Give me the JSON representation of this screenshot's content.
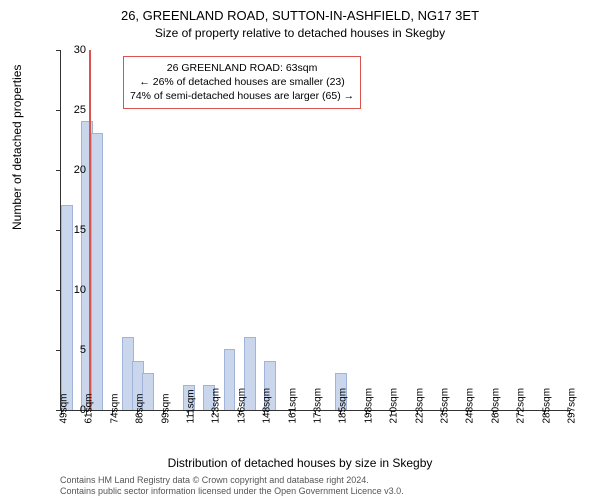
{
  "chart": {
    "type": "histogram",
    "title": "26, GREENLAND ROAD, SUTTON-IN-ASHFIELD, NG17 3ET",
    "subtitle": "Size of property relative to detached houses in Skegby",
    "xlabel": "Distribution of detached houses by size in Skegby",
    "ylabel": "Number of detached properties",
    "background_color": "#ffffff",
    "axis_color": "#333333",
    "grid_color": "#e0e0e0",
    "bar_color": "#c9d6ec",
    "bar_border_color": "#9fb4d8",
    "marker_color": "#d9534f",
    "annotation_border": "#d9534f",
    "x_start": 49,
    "x_end": 300,
    "x_tick_start": 49,
    "x_tick_step": 12.5,
    "x_tick_labels": [
      "49sqm",
      "61sqm",
      "74sqm",
      "86sqm",
      "99sqm",
      "111sqm",
      "123sqm",
      "136sqm",
      "148sqm",
      "161sqm",
      "173sqm",
      "185sqm",
      "198sqm",
      "210sqm",
      "223sqm",
      "235sqm",
      "248sqm",
      "260sqm",
      "272sqm",
      "285sqm",
      "297sqm"
    ],
    "ylim": [
      0,
      30
    ],
    "y_ticks": [
      0,
      5,
      10,
      15,
      20,
      25,
      30
    ],
    "bin_width": 5,
    "bins": [
      {
        "x": 49,
        "count": 17
      },
      {
        "x": 54,
        "count": 0
      },
      {
        "x": 59,
        "count": 24
      },
      {
        "x": 64,
        "count": 23
      },
      {
        "x": 69,
        "count": 0
      },
      {
        "x": 74,
        "count": 0
      },
      {
        "x": 79,
        "count": 6
      },
      {
        "x": 84,
        "count": 4
      },
      {
        "x": 89,
        "count": 3
      },
      {
        "x": 94,
        "count": 0
      },
      {
        "x": 99,
        "count": 0
      },
      {
        "x": 104,
        "count": 0
      },
      {
        "x": 109,
        "count": 2
      },
      {
        "x": 114,
        "count": 0
      },
      {
        "x": 119,
        "count": 2
      },
      {
        "x": 124,
        "count": 0
      },
      {
        "x": 129,
        "count": 5
      },
      {
        "x": 134,
        "count": 0
      },
      {
        "x": 139,
        "count": 6
      },
      {
        "x": 144,
        "count": 0
      },
      {
        "x": 149,
        "count": 4
      },
      {
        "x": 154,
        "count": 0
      },
      {
        "x": 159,
        "count": 0
      },
      {
        "x": 164,
        "count": 0
      },
      {
        "x": 169,
        "count": 0
      },
      {
        "x": 174,
        "count": 0
      },
      {
        "x": 179,
        "count": 0
      },
      {
        "x": 184,
        "count": 3
      },
      {
        "x": 189,
        "count": 0
      }
    ],
    "marker_x": 63,
    "annotation": {
      "line1": "26 GREENLAND ROAD: 63sqm",
      "line2": "← 26% of detached houses are smaller (23)",
      "line3": "74% of semi-detached houses are larger (65) →"
    },
    "footer1": "Contains HM Land Registry data © Crown copyright and database right 2024.",
    "footer2": "Contains public sector information licensed under the Open Government Licence v3.0."
  }
}
